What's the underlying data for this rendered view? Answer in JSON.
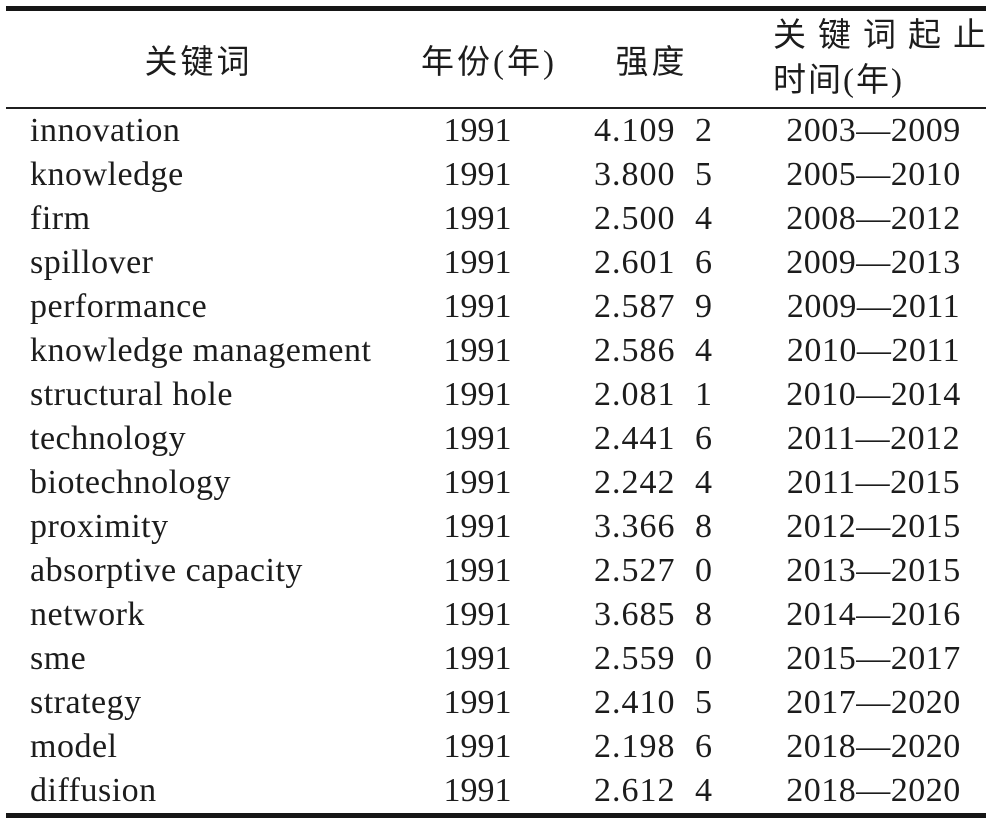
{
  "colors": {
    "background": "#ffffff",
    "text": "#1c1c1c",
    "rule": "#161616"
  },
  "header": {
    "keyword": "关键词",
    "year": "年份(年)",
    "strength": "强度",
    "period_line1": "关键词起止",
    "period_line2": "时间(年)"
  },
  "rows": [
    {
      "keyword": "innovation",
      "year": "1991",
      "strength": "4.109 2",
      "period": "2003—2009"
    },
    {
      "keyword": "knowledge",
      "year": "1991",
      "strength": "3.800 5",
      "period": "2005—2010"
    },
    {
      "keyword": "firm",
      "year": "1991",
      "strength": "2.500 4",
      "period": "2008—2012"
    },
    {
      "keyword": "spillover",
      "year": "1991",
      "strength": "2.601 6",
      "period": "2009—2013"
    },
    {
      "keyword": "performance",
      "year": "1991",
      "strength": "2.587 9",
      "period": "2009—2011"
    },
    {
      "keyword": "knowledge management",
      "year": "1991",
      "strength": "2.586 4",
      "period": "2010—2011"
    },
    {
      "keyword": "structural hole",
      "year": "1991",
      "strength": "2.081 1",
      "period": "2010—2014"
    },
    {
      "keyword": "technology",
      "year": "1991",
      "strength": "2.441 6",
      "period": "2011—2012"
    },
    {
      "keyword": "biotechnology",
      "year": "1991",
      "strength": "2.242 4",
      "period": "2011—2015"
    },
    {
      "keyword": "proximity",
      "year": "1991",
      "strength": "3.366 8",
      "period": "2012—2015"
    },
    {
      "keyword": "absorptive capacity",
      "year": "1991",
      "strength": "2.527 0",
      "period": "2013—2015"
    },
    {
      "keyword": "network",
      "year": "1991",
      "strength": "3.685 8",
      "period": "2014—2016"
    },
    {
      "keyword": "sme",
      "year": "1991",
      "strength": "2.559 0",
      "period": "2015—2017"
    },
    {
      "keyword": "strategy",
      "year": "1991",
      "strength": "2.410 5",
      "period": "2017—2020"
    },
    {
      "keyword": "model",
      "year": "1991",
      "strength": "2.198 6",
      "period": "2018—2020"
    },
    {
      "keyword": "diffusion",
      "year": "1991",
      "strength": "2.612 4",
      "period": "2018—2020"
    }
  ],
  "chart_data": {
    "type": "table",
    "title": "",
    "columns": [
      "关键词",
      "年份(年)",
      "强度",
      "关键词起止时间(年)"
    ],
    "rows": [
      [
        "innovation",
        "1991",
        "4.109 2",
        "2003—2009"
      ],
      [
        "knowledge",
        "1991",
        "3.800 5",
        "2005—2010"
      ],
      [
        "firm",
        "1991",
        "2.500 4",
        "2008—2012"
      ],
      [
        "spillover",
        "1991",
        "2.601 6",
        "2009—2013"
      ],
      [
        "performance",
        "1991",
        "2.587 9",
        "2009—2011"
      ],
      [
        "knowledge management",
        "1991",
        "2.586 4",
        "2010—2011"
      ],
      [
        "structural hole",
        "1991",
        "2.081 1",
        "2010—2014"
      ],
      [
        "technology",
        "1991",
        "2.441 6",
        "2011—2012"
      ],
      [
        "biotechnology",
        "1991",
        "2.242 4",
        "2011—2015"
      ],
      [
        "proximity",
        "1991",
        "3.366 8",
        "2012—2015"
      ],
      [
        "absorptive capacity",
        "1991",
        "2.527 0",
        "2013—2015"
      ],
      [
        "network",
        "1991",
        "3.685 8",
        "2014—2016"
      ],
      [
        "sme",
        "1991",
        "2.559 0",
        "2015—2017"
      ],
      [
        "strategy",
        "1991",
        "2.410 5",
        "2017—2020"
      ],
      [
        "model",
        "1991",
        "2.198 6",
        "2018—2020"
      ],
      [
        "diffusion",
        "1991",
        "2.612 4",
        "2018—2020"
      ]
    ]
  }
}
